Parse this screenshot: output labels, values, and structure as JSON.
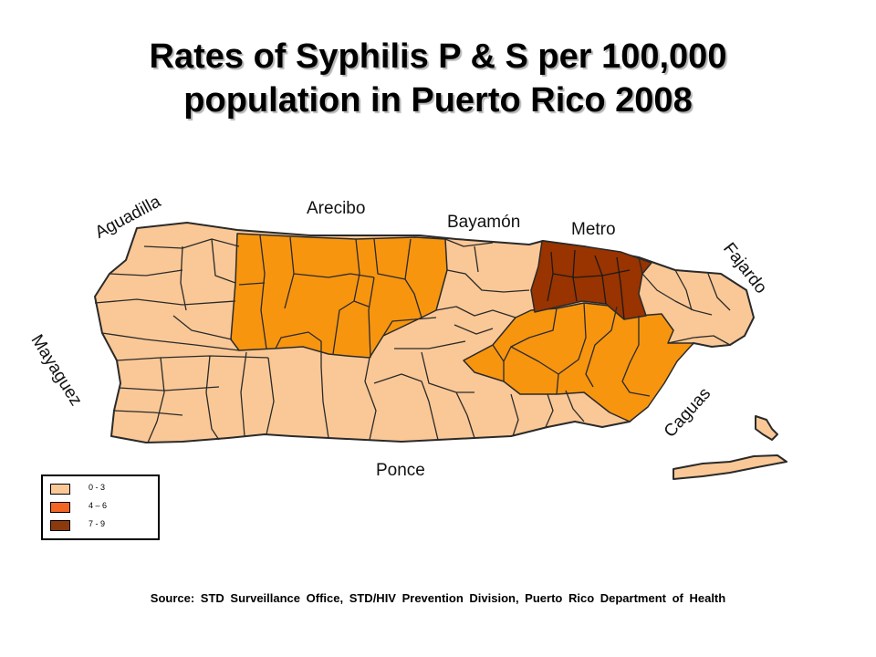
{
  "title": {
    "line1": "Rates of Syphilis P & S per 100,000",
    "line2": "population in Puerto Rico 2008"
  },
  "regions": {
    "aguadilla": "Aguadilla",
    "arecibo": "Arecibo",
    "bayamon": "Bayamón",
    "metro": "Metro",
    "fajardo": "Fajardo",
    "mayaguez": "Mayaguez",
    "caguas": "Caguas",
    "ponce": "Ponce"
  },
  "legend": {
    "items": [
      {
        "label": "0 - 3",
        "color": "#FAC896"
      },
      {
        "label": "4 – 6",
        "color": "#F26522"
      },
      {
        "label": "7 - 9",
        "color": "#8B3A0E"
      }
    ]
  },
  "colors": {
    "low": "#FAC896",
    "mid": "#F7950F",
    "high": "#993300",
    "border": "#2a2a2a"
  },
  "source": "Source: STD Surveillance Office, STD/HIV Prevention Division, Puerto Rico Department of Health"
}
